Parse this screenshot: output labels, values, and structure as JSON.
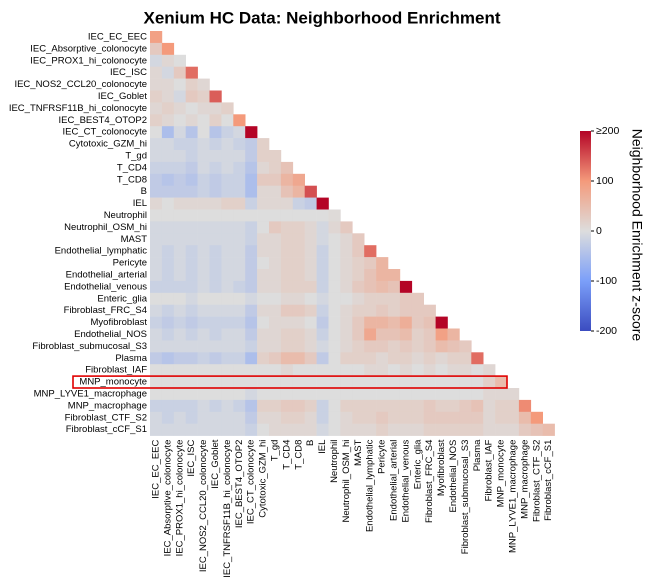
{
  "chart_data": {
    "type": "heatmap",
    "title": "Xenium HC Data: Neighborhood Enrichment",
    "categories": [
      "IEC_EC_EEC",
      "IEC_Absorptive_colonocyte",
      "IEC_PROX1_hi_colonocyte",
      "IEC_ISC",
      "IEC_NOS2_CCL20_colonocyte",
      "IEC_Goblet",
      "IEC_TNFRSF11B_hi_colonocyte",
      "IEC_BEST4_OTOP2",
      "IEC_CT_colonocyte",
      "Cytotoxic_GZM_hi",
      "T_gd",
      "T_CD4",
      "T_CD8",
      "B",
      "IEL",
      "Neutrophil",
      "Neutrophil_OSM_hi",
      "MAST",
      "Endothelial_lymphatic",
      "Pericyte",
      "Endothelial_arterial",
      "Endothelial_venous",
      "Enteric_glia",
      "Fibroblast_FRC_S4",
      "Myofibroblast",
      "Endothelial_NOS",
      "Fibroblast_submucosal_S3",
      "Plasma",
      "Fibroblast_IAF",
      "MNP_monocyte",
      "MNP_LYVE1_macrophage",
      "MNP_macrophage",
      "Fibroblast_CTF_S2",
      "Fibroblast_cCF_S1"
    ],
    "values": [
      [
        90
      ],
      [
        30,
        100
      ],
      [
        -10,
        10,
        0
      ],
      [
        10,
        -10,
        30,
        130
      ],
      [
        10,
        10,
        0,
        20,
        10
      ],
      [
        20,
        10,
        -10,
        30,
        20,
        140
      ],
      [
        10,
        20,
        10,
        0,
        10,
        10,
        20
      ],
      [
        20,
        10,
        0,
        10,
        0,
        20,
        0,
        100
      ],
      [
        0,
        -50,
        -10,
        -40,
        0,
        -40,
        -20,
        -10,
        200
      ],
      [
        -10,
        -10,
        -20,
        -20,
        -10,
        -20,
        -10,
        -20,
        -30,
        20
      ],
      [
        -10,
        -10,
        -10,
        -20,
        -10,
        -10,
        -10,
        -10,
        -30,
        20,
        20
      ],
      [
        -20,
        -20,
        -20,
        -30,
        -10,
        -20,
        -10,
        -20,
        -40,
        10,
        20,
        40
      ],
      [
        -30,
        -40,
        -30,
        -40,
        -20,
        -30,
        -20,
        -20,
        -50,
        30,
        30,
        60,
        80
      ],
      [
        -30,
        -30,
        -30,
        -30,
        -20,
        -30,
        -20,
        -20,
        -50,
        10,
        10,
        40,
        60,
        150
      ],
      [
        10,
        0,
        10,
        10,
        10,
        10,
        20,
        20,
        -20,
        10,
        10,
        10,
        -20,
        -30,
        200
      ],
      [
        0,
        0,
        0,
        0,
        0,
        0,
        0,
        0,
        0,
        0,
        0,
        0,
        0,
        0,
        0,
        5
      ],
      [
        -10,
        -10,
        -10,
        -10,
        -10,
        -10,
        -10,
        -10,
        -20,
        0,
        30,
        20,
        20,
        10,
        -10,
        10,
        30
      ],
      [
        -10,
        -10,
        -10,
        -10,
        -10,
        -10,
        -10,
        -10,
        -20,
        10,
        10,
        20,
        20,
        10,
        -10,
        0,
        10,
        30
      ],
      [
        -10,
        -20,
        -10,
        -20,
        -10,
        -20,
        -10,
        -10,
        -30,
        10,
        10,
        20,
        20,
        10,
        -20,
        0,
        10,
        30,
        130
      ],
      [
        -10,
        -20,
        -10,
        -20,
        -10,
        -20,
        -10,
        -10,
        -30,
        0,
        10,
        20,
        20,
        10,
        -20,
        0,
        10,
        20,
        30,
        60
      ],
      [
        -10,
        -20,
        -10,
        -20,
        -10,
        -20,
        -10,
        -10,
        -30,
        10,
        10,
        20,
        20,
        10,
        -20,
        0,
        10,
        20,
        40,
        60,
        60
      ],
      [
        -20,
        -20,
        -20,
        -20,
        -10,
        -20,
        -10,
        -20,
        -30,
        10,
        10,
        20,
        20,
        20,
        -20,
        0,
        10,
        30,
        40,
        50,
        40,
        200
      ],
      [
        0,
        0,
        0,
        -10,
        0,
        0,
        0,
        0,
        -10,
        0,
        0,
        10,
        10,
        0,
        -10,
        0,
        0,
        10,
        20,
        20,
        20,
        30,
        30
      ],
      [
        -10,
        -20,
        -10,
        -20,
        -10,
        -10,
        -10,
        -10,
        -30,
        10,
        10,
        30,
        30,
        20,
        -20,
        0,
        10,
        20,
        20,
        30,
        20,
        30,
        30,
        30
      ],
      [
        -20,
        -30,
        -20,
        -30,
        -20,
        -20,
        -20,
        -20,
        -40,
        0,
        10,
        10,
        10,
        0,
        -30,
        0,
        10,
        30,
        60,
        60,
        50,
        70,
        30,
        40,
        200
      ],
      [
        -10,
        -20,
        -10,
        -20,
        -10,
        -20,
        -10,
        -10,
        -30,
        10,
        10,
        20,
        20,
        10,
        -20,
        0,
        10,
        30,
        80,
        40,
        40,
        50,
        20,
        30,
        90,
        60
      ],
      [
        -10,
        -10,
        -10,
        -10,
        -10,
        -10,
        -10,
        -10,
        -20,
        10,
        10,
        20,
        20,
        10,
        -10,
        0,
        10,
        20,
        30,
        30,
        20,
        30,
        20,
        30,
        50,
        40,
        30
      ],
      [
        -30,
        -40,
        -30,
        -30,
        -20,
        -30,
        -20,
        -20,
        -50,
        20,
        30,
        50,
        50,
        30,
        -30,
        0,
        20,
        20,
        20,
        10,
        20,
        20,
        10,
        20,
        10,
        20,
        20,
        130
      ],
      [
        0,
        0,
        0,
        0,
        0,
        0,
        0,
        0,
        0,
        0,
        0,
        10,
        0,
        0,
        0,
        0,
        0,
        0,
        10,
        10,
        0,
        10,
        0,
        10,
        0,
        10,
        10,
        0,
        10
      ],
      [
        0,
        0,
        0,
        0,
        0,
        0,
        0,
        0,
        0,
        0,
        0,
        0,
        0,
        0,
        0,
        0,
        0,
        0,
        0,
        0,
        0,
        0,
        0,
        0,
        0,
        0,
        0,
        0,
        20,
        50
      ],
      [
        0,
        0,
        0,
        0,
        0,
        0,
        0,
        0,
        -10,
        0,
        0,
        0,
        0,
        0,
        0,
        0,
        0,
        0,
        0,
        0,
        0,
        0,
        0,
        0,
        0,
        0,
        0,
        0,
        10,
        10,
        10
      ],
      [
        -20,
        -20,
        -20,
        -20,
        -10,
        -20,
        -10,
        -20,
        -40,
        20,
        20,
        30,
        30,
        20,
        -20,
        0,
        20,
        20,
        20,
        20,
        20,
        20,
        20,
        30,
        20,
        20,
        30,
        40,
        10,
        20,
        20,
        110
      ],
      [
        -10,
        -20,
        -10,
        -20,
        -10,
        -10,
        -10,
        -10,
        -30,
        10,
        10,
        20,
        20,
        10,
        -20,
        0,
        10,
        20,
        20,
        30,
        20,
        20,
        20,
        30,
        30,
        30,
        30,
        30,
        10,
        20,
        20,
        50,
        100
      ],
      [
        -10,
        -10,
        -10,
        -10,
        -10,
        -10,
        -10,
        -10,
        -20,
        0,
        10,
        10,
        10,
        10,
        -10,
        0,
        10,
        10,
        10,
        20,
        10,
        10,
        10,
        20,
        20,
        20,
        20,
        20,
        10,
        10,
        10,
        30,
        40,
        50
      ]
    ],
    "zlim": [
      -200,
      200
    ],
    "colors": [
      "#3b4cc0",
      "#7b9ff9",
      "#dddddd",
      "#f49a7b",
      "#b40426"
    ],
    "colorbar_ticks": [
      -200,
      -100,
      0,
      100,
      {
        "value": 200,
        "label": "≥200"
      }
    ],
    "colorbar_label": "Neighborhood Enrichment z-score"
  }
}
